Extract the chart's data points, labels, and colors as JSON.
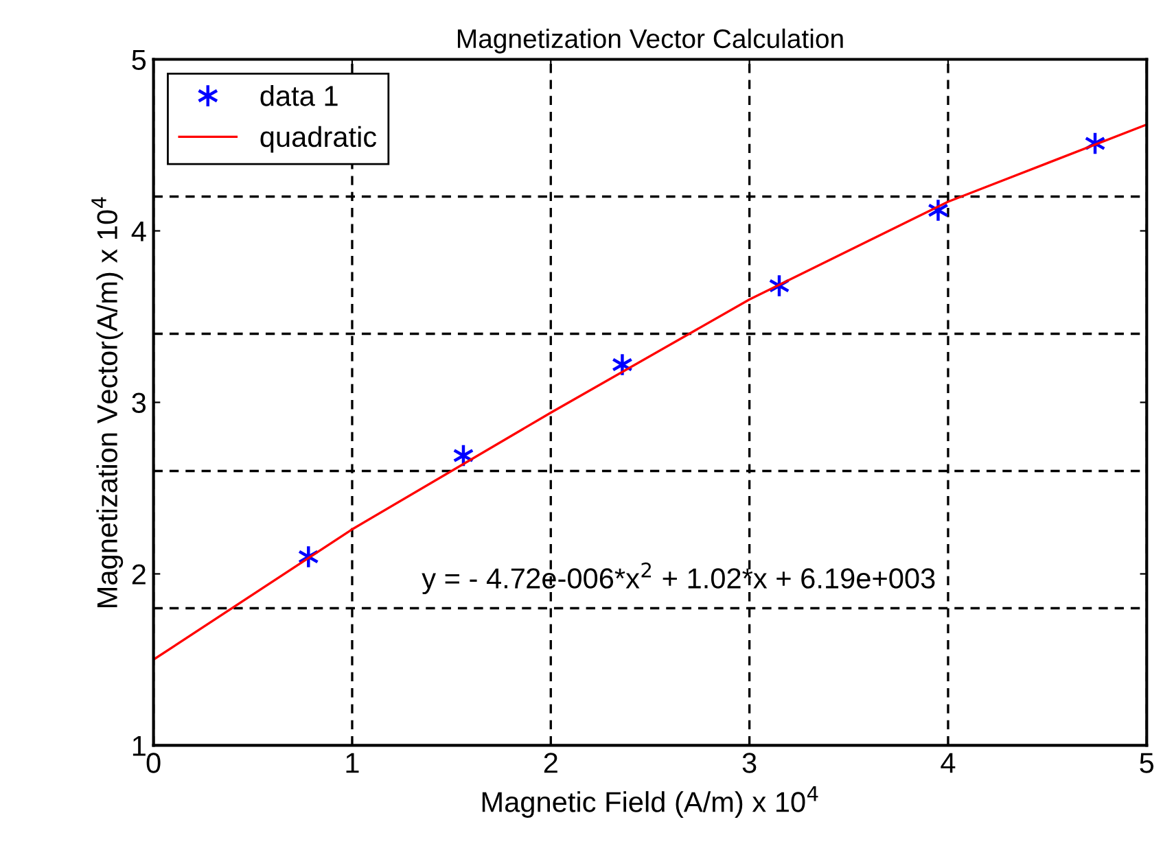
{
  "chart_data": {
    "type": "scatter",
    "title": "Magnetization Vector Calculation",
    "xlabel": "Magnetic Field (A/m) x 10$^{4}$",
    "ylabel": "Magnetization Vector(A/m) x 10$^{4}$",
    "series": [
      {
        "name": "data 1",
        "color": "#0000ff",
        "marker": "cross",
        "x": [
          0.78,
          1.56,
          2.36,
          3.15,
          3.95,
          4.74
        ],
        "values": [
          2.1,
          2.69,
          3.22,
          3.68,
          4.12,
          4.51
        ]
      },
      {
        "name": "quadratic",
        "type": "line",
        "color": "#ff0000",
        "marker": "none",
        "line_style": "solid",
        "x": [
          0,
          1,
          2,
          3,
          4,
          5
        ],
        "values": [
          1.5,
          2.26,
          2.94,
          3.6,
          4.17,
          4.62
        ]
      }
    ],
    "annotations": [
      "y = - 4.72e-006*x$^{2}$ + 1.02*x + 6.19e+003"
    ],
    "xlim": [
      0,
      5
    ],
    "xticks": [
      0,
      1,
      2,
      3,
      4,
      5
    ],
    "ylim": [
      1,
      5
    ],
    "yticks": [
      1,
      2,
      3,
      4,
      5
    ],
    "grid": "x",
    "legend": "top left",
    "ref_lines": [
      {
        "axis": "y",
        "value": 1.8,
        "color": "#000000",
        "line_style": "dashed"
      },
      {
        "axis": "y",
        "value": 2.6,
        "color": "#000000",
        "line_style": "dashed"
      },
      {
        "axis": "y",
        "value": 3.4,
        "color": "#000000",
        "line_style": "dashed"
      },
      {
        "axis": "y",
        "value": 4.2,
        "color": "#000000",
        "line_style": "dashed"
      }
    ]
  }
}
